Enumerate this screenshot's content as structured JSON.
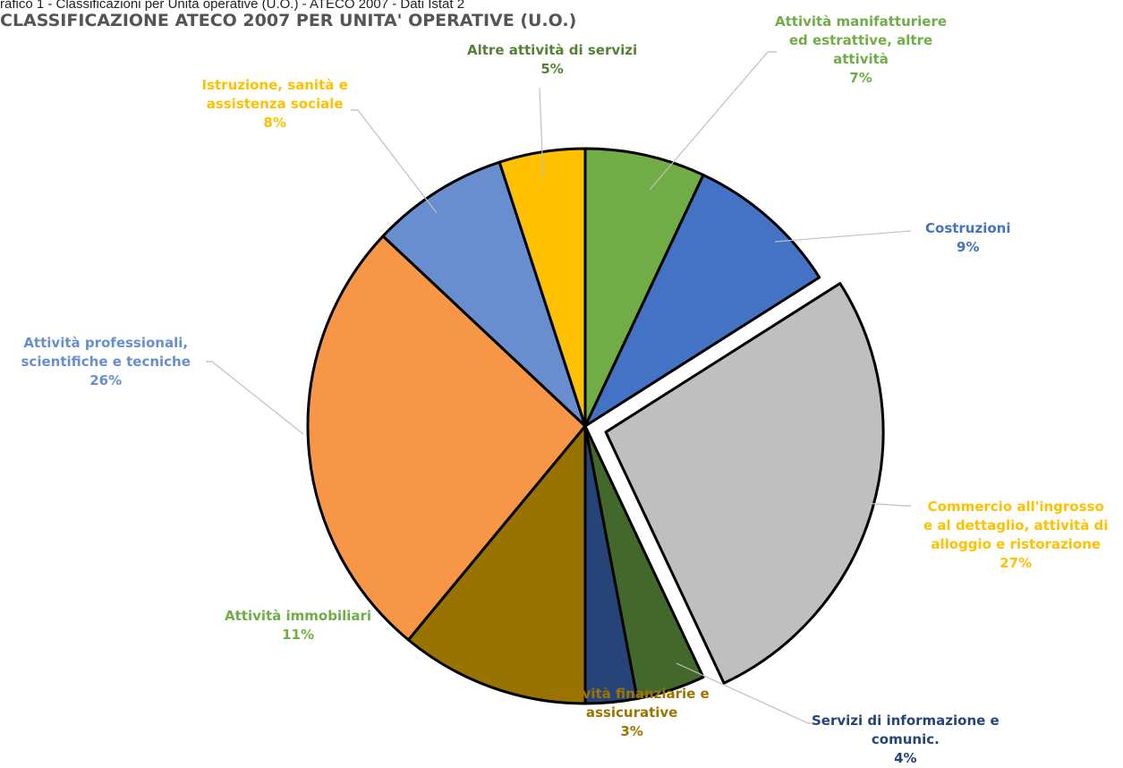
{
  "caption": "rafico 1 - Classificazioni per Unità operative (U.O.) - ATECO 2007 - Dati Istat 2",
  "chart_data": {
    "type": "pie",
    "title": "CLASSIFICAZIONE ATECO 2007 PER UNITA' OPERATIVE (U.O.)",
    "slices": [
      {
        "label": [
          "Attività manifatturiere",
          "ed estrattive, altre",
          "attività"
        ],
        "pct_label": "7%",
        "value": 7,
        "color": "#70ad47",
        "text_color": "#70ad47"
      },
      {
        "label": [
          "Costruzioni"
        ],
        "pct_label": "9%",
        "value": 9,
        "color": "#4472c4",
        "text_color": "#4472c4"
      },
      {
        "label": [
          "Commercio all'ingrosso",
          "e al dettaglio, attività di",
          "alloggio e ristorazione"
        ],
        "pct_label": "27%",
        "value": 27,
        "color": "#bfbfbf",
        "text_color": "#ffc000",
        "exploded": true
      },
      {
        "label": [
          "Servizi di informazione e",
          "comunic."
        ],
        "pct_label": "4%",
        "value": 4,
        "color": "#43682b",
        "text_color": "#264478"
      },
      {
        "label": [
          "Attività finanziarie e",
          "assicurative"
        ],
        "pct_label": "3%",
        "value": 3,
        "color": "#264478",
        "text_color": "#9e7300"
      },
      {
        "label": [
          "Attività immobiliari"
        ],
        "pct_label": "11%",
        "value": 11,
        "color": "#997300",
        "text_color": "#70ad47"
      },
      {
        "label": [
          "Attività professionali,",
          "scientifiche e tecniche"
        ],
        "pct_label": "26%",
        "value": 26,
        "color": "#f79646",
        "text_color": "#698ed0"
      },
      {
        "label": [
          "Istruzione, sanità e",
          "assistenza sociale"
        ],
        "pct_label": "8%",
        "value": 8,
        "color": "#698ed0",
        "text_color": "#ffc000"
      },
      {
        "label": [
          "Altre attività di servizi"
        ],
        "pct_label": "5%",
        "value": 5,
        "color": "#ffc000",
        "text_color": "#548235"
      }
    ]
  }
}
